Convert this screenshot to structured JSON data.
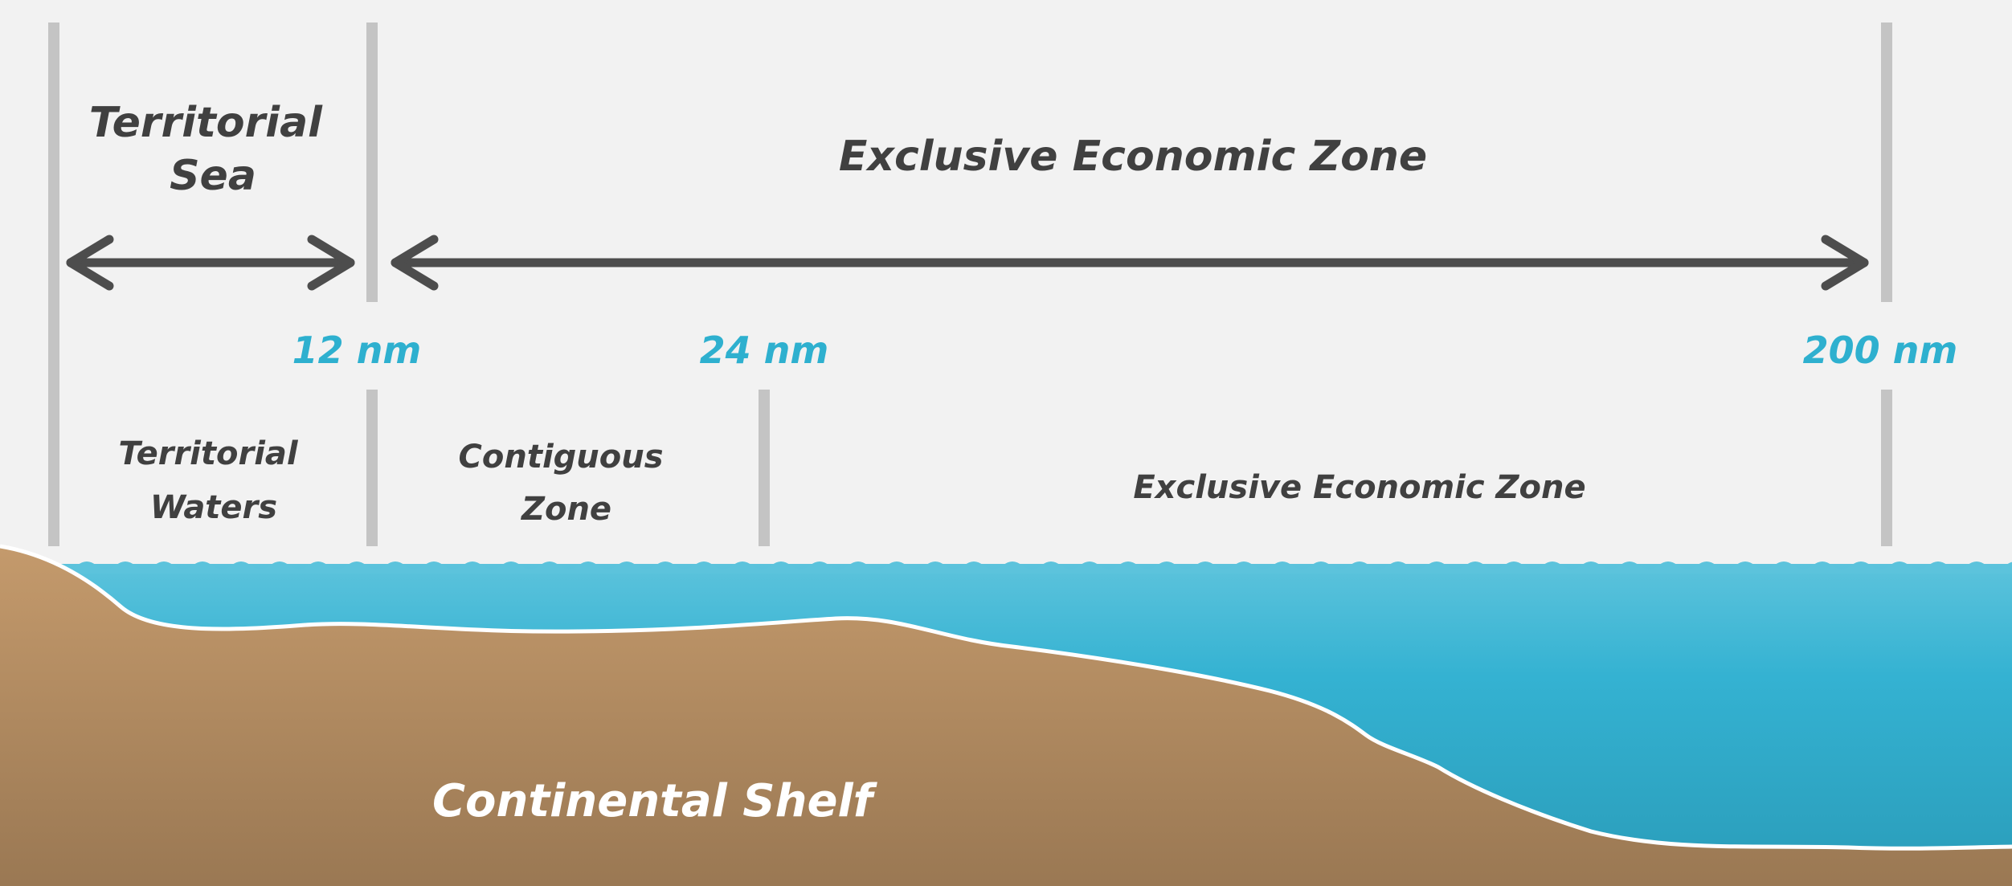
{
  "top_labels": {
    "territorial_sea": [
      "Territorial",
      "Sea"
    ],
    "exclusive_economic_zone": "Exclusive Economic Zone"
  },
  "distances": {
    "nm12": "12 nm",
    "nm24": "24 nm",
    "nm200": "200 nm"
  },
  "zone_labels": {
    "territorial_waters": [
      "Territorial",
      "Waters"
    ],
    "contiguous_zone": [
      "Contiguous",
      "Zone"
    ],
    "exclusive_economic_zone": "Exclusive Economic Zone"
  },
  "shelf_label": "Continental Shelf",
  "colors": {
    "background": "#f2f2f2",
    "boundary_line": "#c4c4c4",
    "arrow": "#4d4d4d",
    "label_text": "#404040",
    "distance_text": "#2eb0cf",
    "water_top": "#5cc3dc",
    "water_bottom": "#2a9cb9",
    "land_top": "#c49a6c",
    "land_bottom": "#9a7853"
  }
}
